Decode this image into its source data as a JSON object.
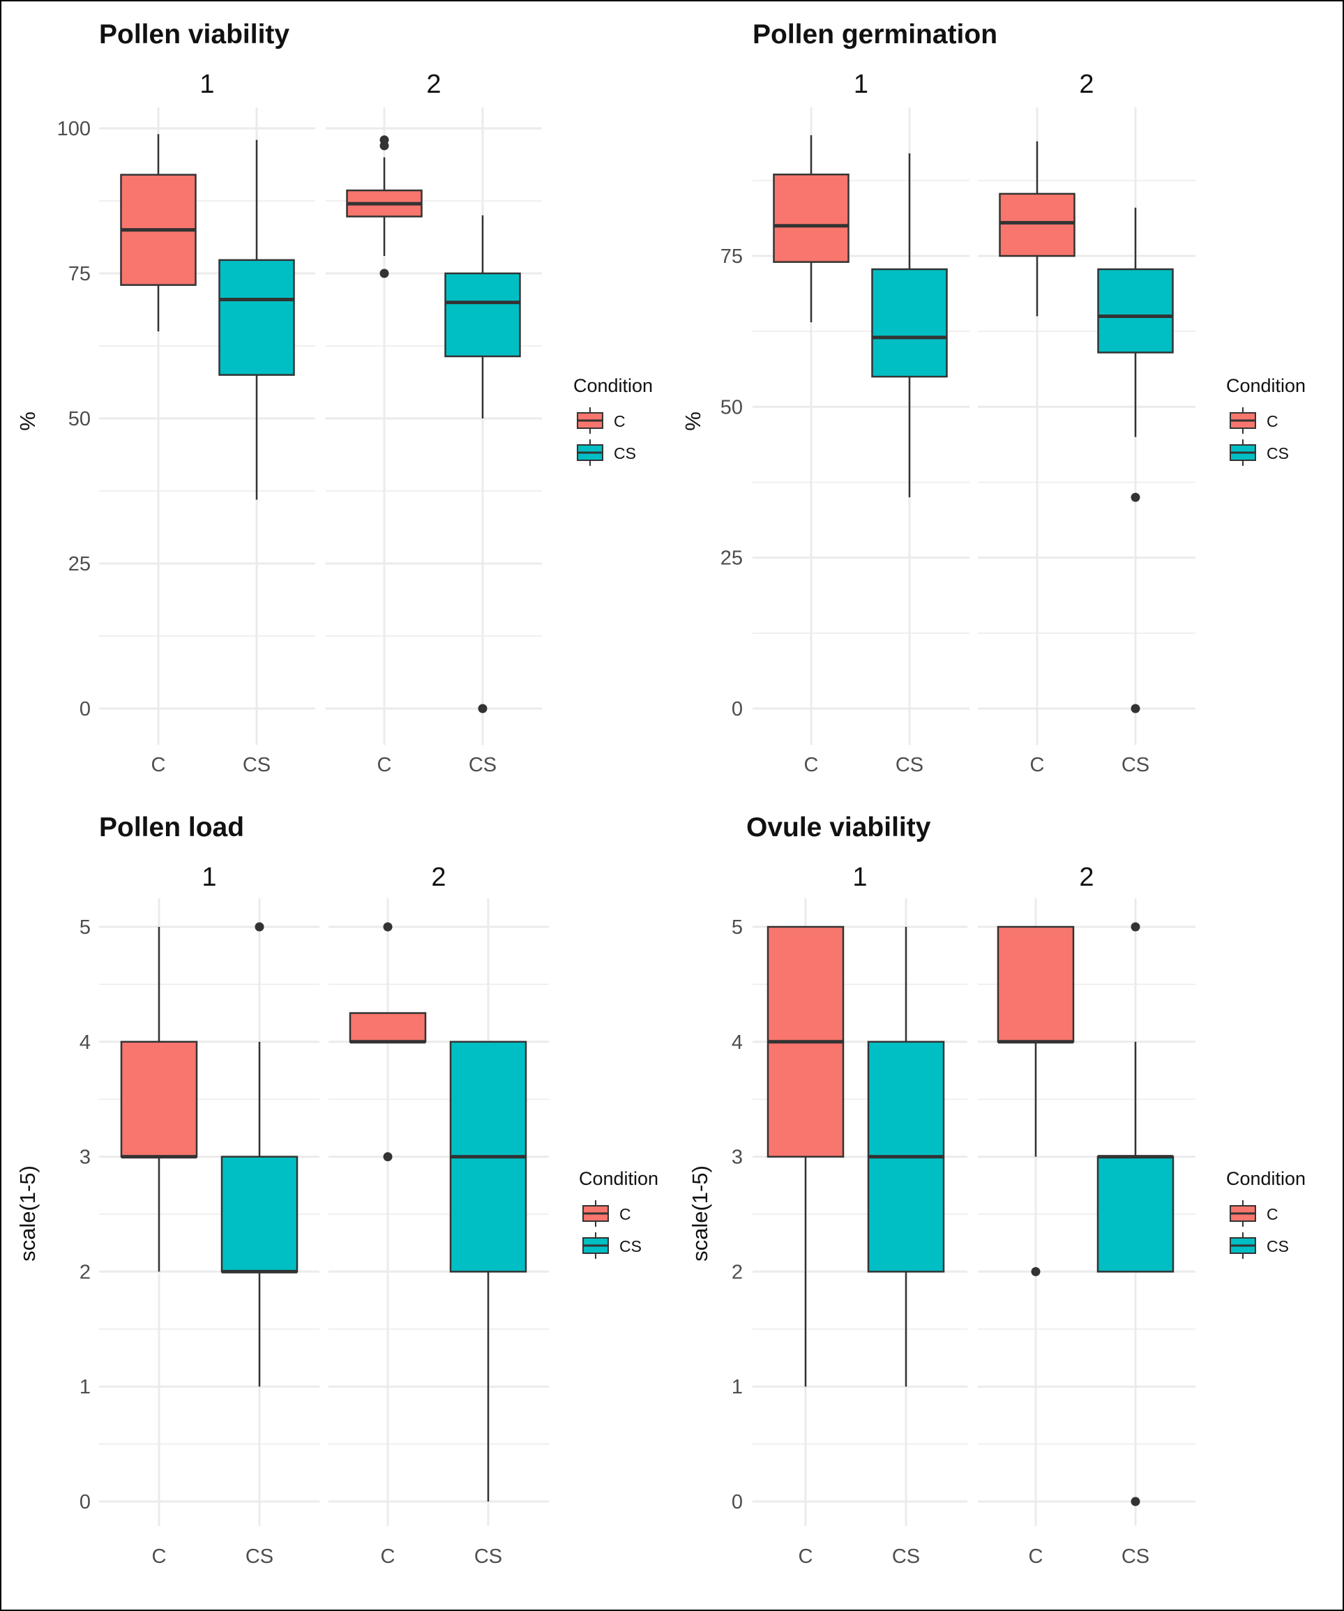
{
  "colors": {
    "C": "#F8766D",
    "CS": "#00BFC4",
    "line": "#333333",
    "grid": "#EBEBEB"
  },
  "chart_data": [
    {
      "type": "boxplot",
      "title": "Pollen viability",
      "ylabel": "%",
      "ylim": [
        -6,
        103
      ],
      "yticks": [
        0,
        25,
        50,
        75,
        100
      ],
      "yminor": [
        12.5,
        37.5,
        62.5,
        87.5
      ],
      "facets": [
        "1",
        "2"
      ],
      "categories": [
        "C",
        "CS"
      ],
      "legend": {
        "title": "Condition",
        "entries": [
          "C",
          "CS"
        ],
        "position": "right"
      },
      "boxes": [
        {
          "facet": "1",
          "condition": "C",
          "min": 65,
          "q1": 73,
          "median": 82.5,
          "q3": 92,
          "max": 99,
          "outliers": []
        },
        {
          "facet": "1",
          "condition": "CS",
          "min": 36,
          "q1": 57.5,
          "median": 70.5,
          "q3": 77.3,
          "max": 98,
          "outliers": []
        },
        {
          "facet": "2",
          "condition": "C",
          "min": 78,
          "q1": 84.8,
          "median": 87,
          "q3": 89.3,
          "max": 95,
          "outliers": [
            98,
            97,
            75
          ]
        },
        {
          "facet": "2",
          "condition": "CS",
          "min": 50,
          "q1": 60.7,
          "median": 70,
          "q3": 75,
          "max": 85,
          "outliers": [
            0
          ]
        }
      ]
    },
    {
      "type": "boxplot",
      "title": "Pollen germination",
      "ylabel": "%",
      "ylim": [
        -6,
        97
      ],
      "yticks": [
        0,
        25,
        50,
        75
      ],
      "yminor": [
        12.5,
        37.5,
        62.5,
        87.5
      ],
      "facets": [
        "1",
        "2"
      ],
      "categories": [
        "C",
        "CS"
      ],
      "legend": {
        "title": "Condition",
        "entries": [
          "C",
          "CS"
        ],
        "position": "right"
      },
      "boxes": [
        {
          "facet": "1",
          "condition": "C",
          "min": 64,
          "q1": 74,
          "median": 80,
          "q3": 88.5,
          "max": 95,
          "outliers": []
        },
        {
          "facet": "1",
          "condition": "CS",
          "min": 35,
          "q1": 55,
          "median": 61.5,
          "q3": 72.8,
          "max": 92,
          "outliers": []
        },
        {
          "facet": "2",
          "condition": "C",
          "min": 65,
          "q1": 75,
          "median": 80.5,
          "q3": 85.3,
          "max": 94,
          "outliers": []
        },
        {
          "facet": "2",
          "condition": "CS",
          "min": 45,
          "q1": 59,
          "median": 65,
          "q3": 72.8,
          "max": 83,
          "outliers": [
            35,
            0
          ]
        }
      ]
    },
    {
      "type": "boxplot",
      "title": "Pollen load",
      "ylabel": "scale(1-5)",
      "ylim": [
        -0.3,
        5.25
      ],
      "yticks": [
        0,
        1,
        2,
        3,
        4,
        5
      ],
      "yminor": [
        0.5,
        1.5,
        2.5,
        3.5,
        4.5
      ],
      "facets": [
        "1",
        "2"
      ],
      "categories": [
        "C",
        "CS"
      ],
      "legend": {
        "title": "Condition",
        "entries": [
          "C",
          "CS"
        ],
        "position": "right"
      },
      "boxes": [
        {
          "facet": "1",
          "condition": "C",
          "min": 2,
          "q1": 3,
          "median": 3,
          "q3": 4,
          "max": 5,
          "outliers": []
        },
        {
          "facet": "1",
          "condition": "CS",
          "min": 1,
          "q1": 2,
          "median": 2,
          "q3": 3,
          "max": 4,
          "outliers": [
            5
          ]
        },
        {
          "facet": "2",
          "condition": "C",
          "min": 4,
          "q1": 4,
          "median": 4,
          "q3": 4.25,
          "max": 4.25,
          "outliers": [
            5,
            3
          ]
        },
        {
          "facet": "2",
          "condition": "CS",
          "min": 0,
          "q1": 2,
          "median": 3,
          "q3": 4,
          "max": 4,
          "outliers": []
        }
      ]
    },
    {
      "type": "boxplot",
      "title": "Ovule viability",
      "ylabel": "scale(1-5)",
      "ylim": [
        -0.3,
        5.25
      ],
      "yticks": [
        0,
        1,
        2,
        3,
        4,
        5
      ],
      "yminor": [
        0.5,
        1.5,
        2.5,
        3.5,
        4.5
      ],
      "facets": [
        "1",
        "2"
      ],
      "categories": [
        "C",
        "CS"
      ],
      "legend": {
        "title": "Condition",
        "entries": [
          "C",
          "CS"
        ],
        "position": "right"
      },
      "boxes": [
        {
          "facet": "1",
          "condition": "C",
          "min": 1,
          "q1": 3,
          "median": 4,
          "q3": 5,
          "max": 5,
          "outliers": []
        },
        {
          "facet": "1",
          "condition": "CS",
          "min": 1,
          "q1": 2,
          "median": 3,
          "q3": 4,
          "max": 5,
          "outliers": []
        },
        {
          "facet": "2",
          "condition": "C",
          "min": 3,
          "q1": 4,
          "median": 4,
          "q3": 5,
          "max": 5,
          "outliers": [
            2
          ]
        },
        {
          "facet": "2",
          "condition": "CS",
          "min": 2,
          "q1": 2,
          "median": 3,
          "q3": 3,
          "max": 4,
          "outliers": [
            5,
            0
          ]
        }
      ]
    }
  ]
}
